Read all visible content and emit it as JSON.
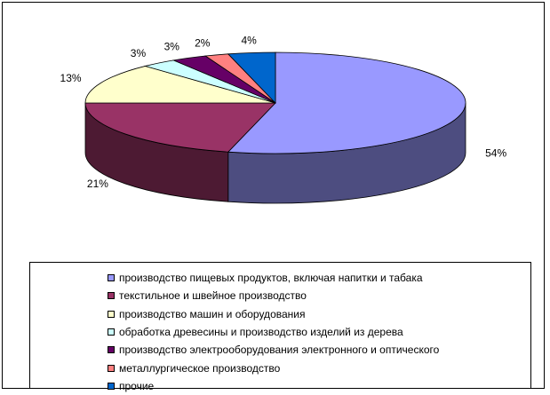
{
  "chart_data": {
    "type": "pie",
    "style": "3d",
    "title": "",
    "categories": [
      "производство пищевых продуктов, включая напитки и табака",
      "текстильное и швейное производство",
      "производство машин и оборудования",
      "обработка древесины и производство изделий из дерева",
      "производство электрооборудования электронного и оптического",
      "металлургическое производство",
      "прочие"
    ],
    "values": [
      54,
      21,
      13,
      3,
      3,
      2,
      4
    ],
    "labels": [
      "54%",
      "21%",
      "13%",
      "3%",
      "3%",
      "2%",
      "4%"
    ],
    "colors": [
      "#9999ff",
      "#993366",
      "#ffffcc",
      "#ccffff",
      "#660066",
      "#ff8080",
      "#0066cc"
    ],
    "legend_position": "bottom"
  }
}
